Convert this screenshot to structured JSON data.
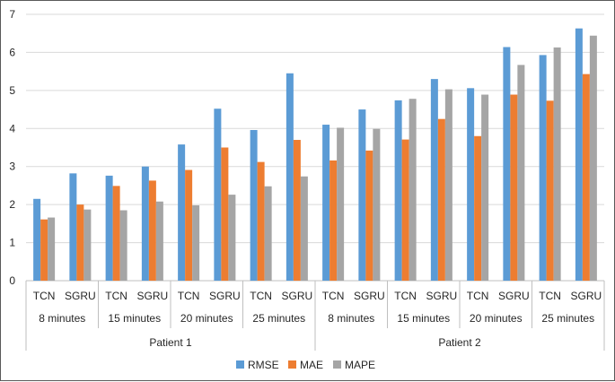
{
  "chart_data": {
    "type": "bar",
    "title": "",
    "xlabel": "",
    "ylabel": "",
    "ylim": [
      0,
      7
    ],
    "yticks": [
      "0",
      "1",
      "2",
      "3",
      "4",
      "5",
      "6",
      "7"
    ],
    "grid": true,
    "legend_position": "bottom",
    "categories": [
      {
        "model": "TCN",
        "horizon": "8  minutes",
        "patient": "Patient 1"
      },
      {
        "model": "SGRU",
        "horizon": "8  minutes",
        "patient": "Patient 1"
      },
      {
        "model": "TCN",
        "horizon": "15 minutes",
        "patient": "Patient 1"
      },
      {
        "model": "SGRU",
        "horizon": "15 minutes",
        "patient": "Patient 1"
      },
      {
        "model": "TCN",
        "horizon": "20 minutes",
        "patient": "Patient 1"
      },
      {
        "model": "SGRU",
        "horizon": "20 minutes",
        "patient": "Patient 1"
      },
      {
        "model": "TCN",
        "horizon": "25 minutes",
        "patient": "Patient 1"
      },
      {
        "model": "SGRU",
        "horizon": "25 minutes",
        "patient": "Patient 1"
      },
      {
        "model": "TCN",
        "horizon": "8 minutes",
        "patient": "Patient 2"
      },
      {
        "model": "SGRU",
        "horizon": "8 minutes",
        "patient": "Patient 2"
      },
      {
        "model": "TCN",
        "horizon": "15 minutes",
        "patient": "Patient 2"
      },
      {
        "model": "SGRU",
        "horizon": "15 minutes",
        "patient": "Patient 2"
      },
      {
        "model": "TCN",
        "horizon": "20 minutes",
        "patient": "Patient 2"
      },
      {
        "model": "SGRU",
        "horizon": "20 minutes",
        "patient": "Patient 2"
      },
      {
        "model": "TCN",
        "horizon": "25 minutes",
        "patient": "Patient 2"
      },
      {
        "model": "SGRU",
        "horizon": "25 minutes",
        "patient": "Patient 2"
      }
    ],
    "horizon_groups": [
      {
        "label": "8  minutes",
        "patient": "Patient 1"
      },
      {
        "label": "15 minutes",
        "patient": "Patient 1"
      },
      {
        "label": "20 minutes",
        "patient": "Patient 1"
      },
      {
        "label": "25 minutes",
        "patient": "Patient 1"
      },
      {
        "label": "8 minutes",
        "patient": "Patient 2"
      },
      {
        "label": "15 minutes",
        "patient": "Patient 2"
      },
      {
        "label": "20 minutes",
        "patient": "Patient 2"
      },
      {
        "label": "25 minutes",
        "patient": "Patient 2"
      }
    ],
    "patients": [
      "Patient 1",
      "Patient 2"
    ],
    "series": [
      {
        "name": "RMSE",
        "color": "#5B9BD5",
        "values": [
          2.15,
          2.82,
          2.76,
          3.0,
          3.58,
          4.52,
          3.96,
          5.45,
          4.1,
          4.5,
          4.74,
          5.3,
          5.06,
          6.14,
          5.93,
          6.63
        ]
      },
      {
        "name": "MAE",
        "color": "#ED7D31",
        "values": [
          1.61,
          2.0,
          2.49,
          2.63,
          2.91,
          3.5,
          3.12,
          3.7,
          3.16,
          3.42,
          3.71,
          4.25,
          3.8,
          4.89,
          4.73,
          5.43
        ]
      },
      {
        "name": "MAPE",
        "color": "#A5A5A5",
        "values": [
          1.66,
          1.87,
          1.85,
          2.08,
          1.98,
          2.26,
          2.48,
          2.74,
          4.02,
          3.99,
          4.78,
          5.03,
          4.89,
          5.67,
          6.13,
          6.44
        ]
      }
    ]
  }
}
